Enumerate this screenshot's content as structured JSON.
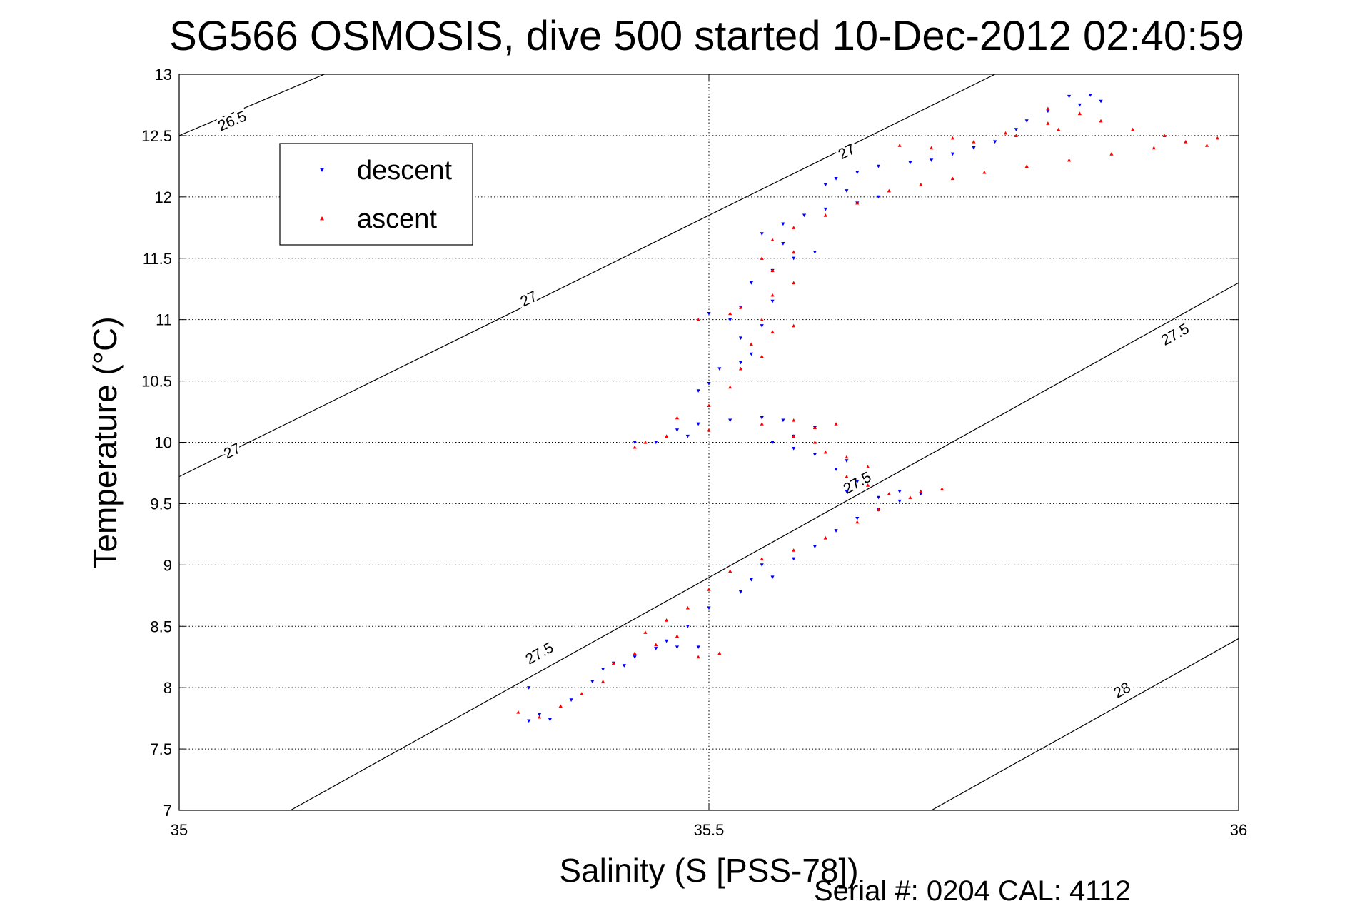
{
  "chart_data": {
    "type": "scatter",
    "title": "SG566 OSMOSIS, dive 500 started 10-Dec-2012 02:40:59",
    "xlabel": "Salinity (S [PSS-78])",
    "ylabel": "Temperature (°C)",
    "xlim": [
      35,
      36
    ],
    "ylim": [
      7,
      13
    ],
    "xticks": [
      "35",
      "35.5",
      "36"
    ],
    "yticks": [
      "7",
      "7.5",
      "8",
      "8.5",
      "9",
      "9.5",
      "10",
      "10.5",
      "11",
      "11.5",
      "12",
      "12.5",
      "13"
    ],
    "grid": true,
    "legend_position": "top-left",
    "footer": "Serial #: 0204  CAL: 4112",
    "colors": {
      "descent": "#0000ff",
      "ascent": "#ff0000",
      "contour": "#000000",
      "grid": "#000000"
    },
    "density_contours": [
      {
        "label": "26.5",
        "line": [
          [
            35,
            12.5
          ],
          [
            35.137,
            13
          ]
        ],
        "label_at": [
          [
            35.05,
            12.62
          ]
        ]
      },
      {
        "label": "27",
        "line": [
          [
            35,
            9.72
          ],
          [
            35.77,
            13
          ]
        ],
        "label_at": [
          [
            35.05,
            9.93
          ],
          [
            35.33,
            11.17
          ],
          [
            35.63,
            12.37
          ]
        ]
      },
      {
        "label": "27.5",
        "line": [
          [
            35.105,
            7
          ],
          [
            36,
            11.3
          ]
        ],
        "label_at": [
          [
            35.34,
            8.28
          ],
          [
            35.64,
            9.67
          ],
          [
            35.94,
            10.88
          ]
        ]
      },
      {
        "label": "28",
        "line": [
          [
            35.71,
            7
          ],
          [
            36,
            8.4
          ]
        ],
        "label_at": [
          [
            35.89,
            7.98
          ]
        ]
      }
    ],
    "series": [
      {
        "name": "descent",
        "marker": "triangle-down",
        "points": [
          [
            35.33,
            7.73
          ],
          [
            35.34,
            7.78
          ],
          [
            35.35,
            7.74
          ],
          [
            35.33,
            8.0
          ],
          [
            35.37,
            7.9
          ],
          [
            35.39,
            8.05
          ],
          [
            35.4,
            8.15
          ],
          [
            35.42,
            8.18
          ],
          [
            35.41,
            8.2
          ],
          [
            35.43,
            8.25
          ],
          [
            35.45,
            8.32
          ],
          [
            35.47,
            8.33
          ],
          [
            35.49,
            8.33
          ],
          [
            35.46,
            8.38
          ],
          [
            35.48,
            8.5
          ],
          [
            35.5,
            8.65
          ],
          [
            35.53,
            8.78
          ],
          [
            35.54,
            8.88
          ],
          [
            35.55,
            9.0
          ],
          [
            35.58,
            9.05
          ],
          [
            35.56,
            8.9
          ],
          [
            35.6,
            9.15
          ],
          [
            35.62,
            9.28
          ],
          [
            35.64,
            9.38
          ],
          [
            35.66,
            9.45
          ],
          [
            35.68,
            9.52
          ],
          [
            35.7,
            9.58
          ],
          [
            35.68,
            9.6
          ],
          [
            35.66,
            9.55
          ],
          [
            35.63,
            9.6
          ],
          [
            35.64,
            9.68
          ],
          [
            35.62,
            9.78
          ],
          [
            35.63,
            9.85
          ],
          [
            35.6,
            9.9
          ],
          [
            35.58,
            9.95
          ],
          [
            35.56,
            10.0
          ],
          [
            35.58,
            10.05
          ],
          [
            35.6,
            10.12
          ],
          [
            35.57,
            10.18
          ],
          [
            35.55,
            10.2
          ],
          [
            35.52,
            10.18
          ],
          [
            35.49,
            10.15
          ],
          [
            35.47,
            10.1
          ],
          [
            35.43,
            10.0
          ],
          [
            35.45,
            10.0
          ],
          [
            35.48,
            10.05
          ],
          [
            35.49,
            10.42
          ],
          [
            35.5,
            10.48
          ],
          [
            35.51,
            10.6
          ],
          [
            35.53,
            10.65
          ],
          [
            35.54,
            10.72
          ],
          [
            35.53,
            10.85
          ],
          [
            35.55,
            10.95
          ],
          [
            35.52,
            11.0
          ],
          [
            35.5,
            11.05
          ],
          [
            35.53,
            11.1
          ],
          [
            35.56,
            11.15
          ],
          [
            35.54,
            11.3
          ],
          [
            35.56,
            11.4
          ],
          [
            35.58,
            11.5
          ],
          [
            35.6,
            11.55
          ],
          [
            35.57,
            11.62
          ],
          [
            35.55,
            11.7
          ],
          [
            35.57,
            11.78
          ],
          [
            35.59,
            11.85
          ],
          [
            35.61,
            11.9
          ],
          [
            35.64,
            11.95
          ],
          [
            35.66,
            12.0
          ],
          [
            35.63,
            12.05
          ],
          [
            35.61,
            12.1
          ],
          [
            35.62,
            12.15
          ],
          [
            35.64,
            12.2
          ],
          [
            35.66,
            12.25
          ],
          [
            35.69,
            12.28
          ],
          [
            35.71,
            12.3
          ],
          [
            35.73,
            12.35
          ],
          [
            35.75,
            12.4
          ],
          [
            35.77,
            12.45
          ],
          [
            35.79,
            12.55
          ],
          [
            35.8,
            12.62
          ],
          [
            35.82,
            12.7
          ],
          [
            35.85,
            12.75
          ],
          [
            35.87,
            12.78
          ],
          [
            35.86,
            12.83
          ],
          [
            35.84,
            12.82
          ]
        ]
      },
      {
        "name": "ascent",
        "marker": "triangle-up",
        "points": [
          [
            35.32,
            7.8
          ],
          [
            35.34,
            7.76
          ],
          [
            35.36,
            7.85
          ],
          [
            35.38,
            7.95
          ],
          [
            35.4,
            8.05
          ],
          [
            35.41,
            8.2
          ],
          [
            35.43,
            8.28
          ],
          [
            35.45,
            8.35
          ],
          [
            35.47,
            8.42
          ],
          [
            35.49,
            8.25
          ],
          [
            35.51,
            8.28
          ],
          [
            35.44,
            8.45
          ],
          [
            35.46,
            8.55
          ],
          [
            35.48,
            8.65
          ],
          [
            35.5,
            8.8
          ],
          [
            35.52,
            8.95
          ],
          [
            35.55,
            9.05
          ],
          [
            35.58,
            9.12
          ],
          [
            35.61,
            9.22
          ],
          [
            35.64,
            9.35
          ],
          [
            35.66,
            9.45
          ],
          [
            35.69,
            9.55
          ],
          [
            35.72,
            9.62
          ],
          [
            35.7,
            9.6
          ],
          [
            35.67,
            9.58
          ],
          [
            35.65,
            9.65
          ],
          [
            35.63,
            9.72
          ],
          [
            35.65,
            9.8
          ],
          [
            35.63,
            9.88
          ],
          [
            35.61,
            9.92
          ],
          [
            35.6,
            10.0
          ],
          [
            35.58,
            10.05
          ],
          [
            35.6,
            10.12
          ],
          [
            35.62,
            10.15
          ],
          [
            35.58,
            10.18
          ],
          [
            35.55,
            10.15
          ],
          [
            35.5,
            10.1
          ],
          [
            35.46,
            10.05
          ],
          [
            35.43,
            9.96
          ],
          [
            35.44,
            10.0
          ],
          [
            35.47,
            10.2
          ],
          [
            35.5,
            10.3
          ],
          [
            35.52,
            10.45
          ],
          [
            35.53,
            10.6
          ],
          [
            35.55,
            10.7
          ],
          [
            35.54,
            10.8
          ],
          [
            35.56,
            10.9
          ],
          [
            35.58,
            10.95
          ],
          [
            35.55,
            11.0
          ],
          [
            35.52,
            11.05
          ],
          [
            35.49,
            11.0
          ],
          [
            35.53,
            11.1
          ],
          [
            35.56,
            11.2
          ],
          [
            35.58,
            11.3
          ],
          [
            35.56,
            11.4
          ],
          [
            35.55,
            11.5
          ],
          [
            35.58,
            11.55
          ],
          [
            35.56,
            11.65
          ],
          [
            35.58,
            11.75
          ],
          [
            35.61,
            11.85
          ],
          [
            35.64,
            11.95
          ],
          [
            35.67,
            12.05
          ],
          [
            35.7,
            12.1
          ],
          [
            35.73,
            12.15
          ],
          [
            35.76,
            12.2
          ],
          [
            35.8,
            12.25
          ],
          [
            35.84,
            12.3
          ],
          [
            35.88,
            12.35
          ],
          [
            35.92,
            12.4
          ],
          [
            35.95,
            12.45
          ],
          [
            35.98,
            12.48
          ],
          [
            35.97,
            12.42
          ],
          [
            35.93,
            12.5
          ],
          [
            35.9,
            12.55
          ],
          [
            35.87,
            12.62
          ],
          [
            35.83,
            12.55
          ],
          [
            35.79,
            12.5
          ],
          [
            35.75,
            12.45
          ],
          [
            35.71,
            12.4
          ],
          [
            35.68,
            12.42
          ],
          [
            35.73,
            12.48
          ],
          [
            35.78,
            12.52
          ],
          [
            35.82,
            12.6
          ],
          [
            35.85,
            12.68
          ],
          [
            35.82,
            12.72
          ]
        ]
      }
    ]
  }
}
